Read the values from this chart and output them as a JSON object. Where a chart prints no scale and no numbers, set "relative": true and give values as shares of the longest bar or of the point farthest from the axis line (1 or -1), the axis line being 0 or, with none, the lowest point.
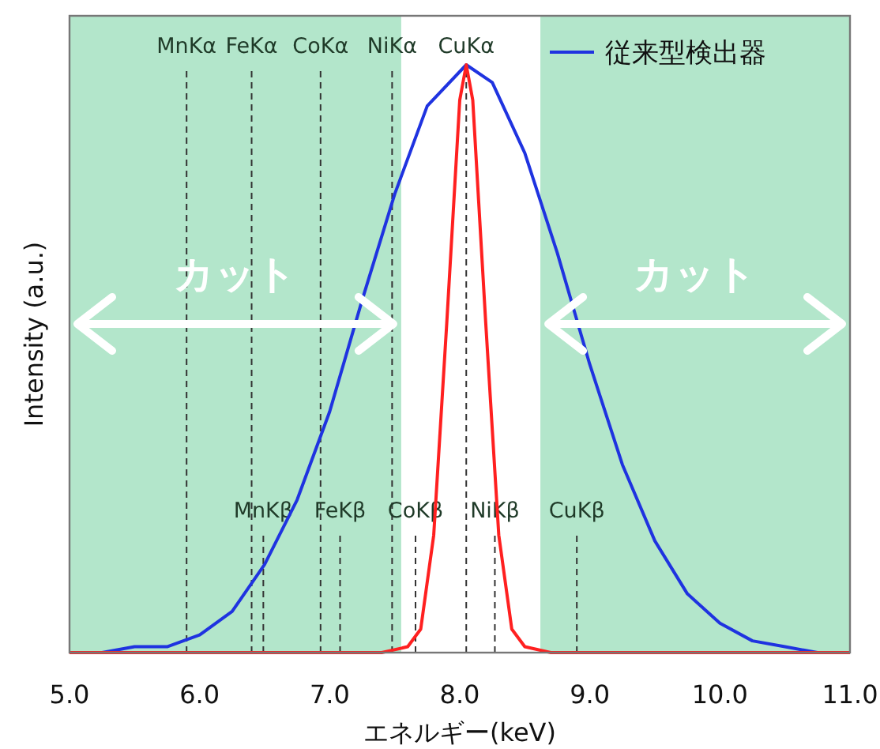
{
  "chart_data": {
    "type": "line",
    "xlabel": "エネルギー(keV)",
    "ylabel": "Intensity (a.u.)",
    "relative": true,
    "xlim": [
      5,
      11
    ],
    "xticks": [
      {
        "value": 5,
        "label": "5.0"
      },
      {
        "value": 6,
        "label": "6.0"
      },
      {
        "value": 7,
        "label": "7.0"
      },
      {
        "value": 8,
        "label": "8.0"
      },
      {
        "value": 9,
        "label": "9.0"
      },
      {
        "value": 10,
        "label": "10.0"
      },
      {
        "value": 11,
        "label": "11.0"
      }
    ],
    "legend": "top right",
    "series": [
      {
        "name": "従来型検出器",
        "color": "#1f33e0",
        "x": [
          5.0,
          5.25,
          5.5,
          5.75,
          6.0,
          6.25,
          6.5,
          6.75,
          7.0,
          7.25,
          7.5,
          7.75,
          8.05,
          8.25,
          8.5,
          8.75,
          9.0,
          9.25,
          9.5,
          9.75,
          10.0,
          10.25,
          10.5,
          10.75,
          11.0
        ],
        "values": [
          0,
          0,
          0.01,
          0.01,
          0.03,
          0.07,
          0.15,
          0.26,
          0.41,
          0.6,
          0.78,
          0.93,
          1,
          0.97,
          0.85,
          0.68,
          0.49,
          0.32,
          0.19,
          0.1,
          0.05,
          0.02,
          0.01,
          0,
          0
        ]
      },
      {
        "color": "#ff2020",
        "x": [
          5.0,
          7.4,
          7.6,
          7.7,
          7.8,
          7.9,
          8.0,
          8.05,
          8.1,
          8.2,
          8.3,
          8.4,
          8.5,
          8.7,
          11.0
        ],
        "values": [
          0,
          0,
          0.01,
          0.04,
          0.2,
          0.56,
          0.94,
          1,
          0.94,
          0.56,
          0.2,
          0.04,
          0.01,
          0,
          0
        ]
      }
    ],
    "bands": [
      {
        "axis": "x",
        "from": 5.0,
        "to": 7.55,
        "label": "カット",
        "color": "#b3e6cb"
      },
      {
        "axis": "x",
        "from": 8.62,
        "to": 11.0,
        "label": "カット",
        "color": "#b3e6cb"
      }
    ],
    "ref_lines": [
      {
        "axis": "x",
        "value": 5.9,
        "label": "MnKα",
        "color": "#333333",
        "line_style": "dashed"
      },
      {
        "axis": "x",
        "value": 6.4,
        "label": "FeKα",
        "color": "#333333",
        "line_style": "dashed"
      },
      {
        "axis": "x",
        "value": 6.93,
        "label": "CoKα",
        "color": "#333333",
        "line_style": "dashed"
      },
      {
        "axis": "x",
        "value": 7.48,
        "label": "NiKα",
        "color": "#333333",
        "line_style": "dashed"
      },
      {
        "axis": "x",
        "value": 8.05,
        "label": "CuKα",
        "color": "#333333",
        "line_style": "dashed"
      },
      {
        "axis": "x",
        "value": 6.49,
        "label": "MnKβ",
        "color": "#333333",
        "line_style": "dashed"
      },
      {
        "axis": "x",
        "value": 7.08,
        "label": "FeKβ",
        "color": "#333333",
        "line_style": "dashed"
      },
      {
        "axis": "x",
        "value": 7.66,
        "label": "CoKβ",
        "color": "#333333",
        "line_style": "dashed"
      },
      {
        "axis": "x",
        "value": 8.27,
        "label": "NiKβ",
        "color": "#333333",
        "line_style": "dashed"
      },
      {
        "axis": "x",
        "value": 8.9,
        "label": "CuKβ",
        "color": "#333333",
        "line_style": "dashed"
      }
    ]
  }
}
